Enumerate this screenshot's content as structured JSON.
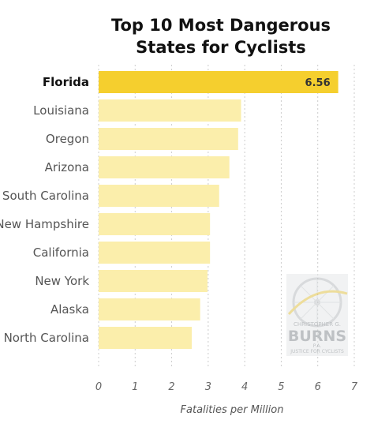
{
  "chart_data": {
    "type": "bar",
    "orientation": "horizontal",
    "title": [
      "Top 10 Most Dangerous",
      "States for Cyclists"
    ],
    "categories": [
      "Florida",
      "Louisiana",
      "Oregon",
      "Arizona",
      "South Carolina",
      "New Hampshire",
      "California",
      "New York",
      "Alaska",
      "North Carolina"
    ],
    "values": [
      6.56,
      3.9,
      3.82,
      3.58,
      3.3,
      3.05,
      3.05,
      2.98,
      2.78,
      2.55
    ],
    "highlight_index": 0,
    "value_labels": [
      "6.56",
      "",
      "",
      "",
      "",
      "",
      "",
      "",
      "",
      ""
    ],
    "xlabel": "Fatalities per Million",
    "ylabel": "",
    "xlim": [
      0,
      7
    ],
    "xticks": [
      0,
      1,
      2,
      3,
      4,
      5,
      6,
      7
    ],
    "grid": true,
    "colors": {
      "highlight": "#f5cf2e",
      "bar": "#fbeeab",
      "grid": "#cccccc"
    }
  },
  "watermark": {
    "line1": "CHRISTOPHER G.",
    "line2": "BURNS",
    "line3": "P.A.",
    "line4": "JUSTICE FOR CYCLISTS",
    "icon": "bicycle-wheel-icon"
  }
}
